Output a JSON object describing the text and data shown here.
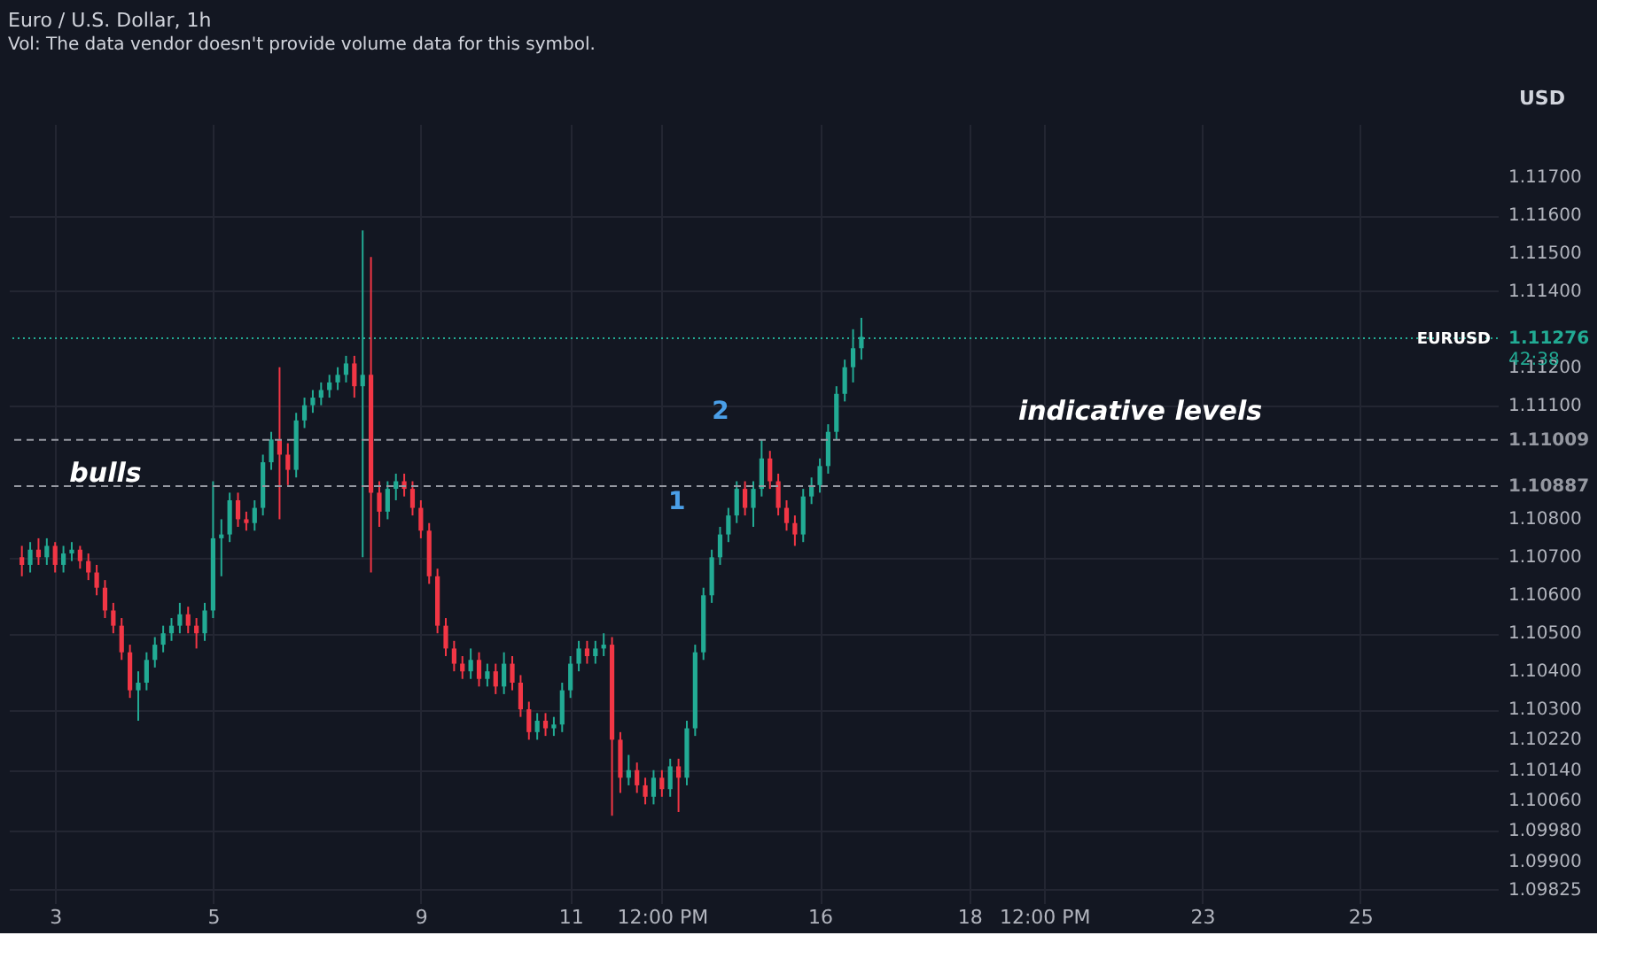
{
  "chart_data": {
    "type": "candlestick",
    "title": "Euro / U.S. Dollar, 1h",
    "subtitle": "Vol: The data vendor doesn't provide volume data for this symbol.",
    "categories": [
      null,
      null,
      null,
      null,
      "3",
      null,
      null,
      null,
      null,
      null,
      null,
      null,
      null,
      null,
      null,
      null,
      null,
      null,
      null,
      null,
      null,
      null,
      null,
      "5",
      null,
      null,
      null,
      null,
      null,
      null,
      null,
      null,
      null,
      null,
      null,
      null,
      null,
      null,
      null,
      null,
      null,
      null,
      null,
      null,
      null,
      null,
      null,
      null,
      "9",
      null,
      null,
      null,
      null,
      null,
      null,
      null,
      null,
      null,
      null,
      null,
      null,
      null,
      null,
      null,
      null,
      null,
      "11",
      null,
      null,
      null,
      null,
      null,
      null,
      null,
      null,
      null,
      null,
      "12:00 PM",
      null,
      null,
      null,
      null,
      null,
      null,
      null,
      null,
      null,
      null,
      null,
      null,
      null,
      null,
      null,
      null,
      null,
      null,
      "16",
      null,
      null,
      null,
      null,
      null,
      null,
      null,
      null,
      null,
      null,
      null,
      null,
      null,
      null,
      null,
      null,
      null,
      "18",
      null,
      null,
      null,
      null,
      null,
      null,
      null,
      null,
      "12:00 PM",
      null,
      null,
      null,
      null,
      null,
      null,
      null,
      null,
      null,
      null,
      null,
      null,
      null,
      null,
      null,
      null,
      null,
      null,
      "23",
      null,
      null,
      null,
      null,
      null,
      null,
      null,
      null,
      null,
      null,
      null,
      null,
      null,
      null,
      null,
      null,
      null,
      null,
      "25",
      null,
      null,
      null,
      null,
      null,
      null,
      null,
      null,
      null,
      null,
      null,
      null,
      null,
      null,
      null
    ],
    "ohlc": [
      [
        1.107,
        1.1073,
        1.1065,
        1.1068
      ],
      [
        1.1068,
        1.1074,
        1.1066,
        1.1072
      ],
      [
        1.1072,
        1.1075,
        1.1068,
        1.107
      ],
      [
        1.107,
        1.1075,
        1.1068,
        1.1073
      ],
      [
        1.1073,
        1.1074,
        1.1066,
        1.1068
      ],
      [
        1.1068,
        1.1073,
        1.1066,
        1.1071
      ],
      [
        1.1071,
        1.1074,
        1.1069,
        1.1072
      ],
      [
        1.1072,
        1.1073,
        1.1067,
        1.1069
      ],
      [
        1.1069,
        1.1071,
        1.1064,
        1.1066
      ],
      [
        1.1066,
        1.1068,
        1.106,
        1.1062
      ],
      [
        1.1062,
        1.1064,
        1.1054,
        1.1056
      ],
      [
        1.1056,
        1.1058,
        1.105,
        1.1052
      ],
      [
        1.1052,
        1.1054,
        1.1043,
        1.1045
      ],
      [
        1.1045,
        1.1047,
        1.1033,
        1.1035
      ],
      [
        1.1035,
        1.104,
        1.1027,
        1.1037
      ],
      [
        1.1037,
        1.1045,
        1.1035,
        1.1043
      ],
      [
        1.1043,
        1.1049,
        1.1041,
        1.1047
      ],
      [
        1.1047,
        1.1052,
        1.1045,
        1.105
      ],
      [
        1.105,
        1.1054,
        1.1048,
        1.1052
      ],
      [
        1.1052,
        1.1058,
        1.105,
        1.1055
      ],
      [
        1.1055,
        1.1057,
        1.105,
        1.1052
      ],
      [
        1.1052,
        1.1054,
        1.1046,
        1.105
      ],
      [
        1.105,
        1.1058,
        1.1048,
        1.1056
      ],
      [
        1.1056,
        1.109,
        1.1054,
        1.1075
      ],
      [
        1.1075,
        1.108,
        1.1065,
        1.1076
      ],
      [
        1.1076,
        1.1087,
        1.1074,
        1.1085
      ],
      [
        1.1085,
        1.1087,
        1.1078,
        1.108
      ],
      [
        1.108,
        1.1082,
        1.1077,
        1.1079
      ],
      [
        1.1079,
        1.1085,
        1.1077,
        1.1083
      ],
      [
        1.1083,
        1.1097,
        1.1081,
        1.1095
      ],
      [
        1.1095,
        1.1103,
        1.1093,
        1.1101
      ],
      [
        1.1101,
        1.112,
        1.108,
        1.1097
      ],
      [
        1.1097,
        1.11,
        1.1089,
        1.1093
      ],
      [
        1.1093,
        1.1108,
        1.1091,
        1.1106
      ],
      [
        1.1106,
        1.1112,
        1.1104,
        1.111
      ],
      [
        1.111,
        1.1114,
        1.1108,
        1.1112
      ],
      [
        1.1112,
        1.1116,
        1.111,
        1.1114
      ],
      [
        1.1114,
        1.1118,
        1.1112,
        1.1116
      ],
      [
        1.1116,
        1.112,
        1.1114,
        1.1118
      ],
      [
        1.1118,
        1.1123,
        1.1116,
        1.1121
      ],
      [
        1.1121,
        1.1123,
        1.1112,
        1.1115
      ],
      [
        1.1115,
        1.1156,
        1.107,
        1.1118
      ],
      [
        1.1118,
        1.1149,
        1.1066,
        1.1087
      ],
      [
        1.1087,
        1.109,
        1.1078,
        1.1082
      ],
      [
        1.1082,
        1.109,
        1.108,
        1.1088
      ],
      [
        1.1088,
        1.1092,
        1.1085,
        1.109
      ],
      [
        1.109,
        1.1092,
        1.1086,
        1.1088
      ],
      [
        1.1088,
        1.109,
        1.1081,
        1.1083
      ],
      [
        1.1083,
        1.1085,
        1.1075,
        1.1077
      ],
      [
        1.1077,
        1.1079,
        1.1063,
        1.1065
      ],
      [
        1.1065,
        1.1067,
        1.105,
        1.1052
      ],
      [
        1.1052,
        1.1054,
        1.1044,
        1.1046
      ],
      [
        1.1046,
        1.1048,
        1.104,
        1.1042
      ],
      [
        1.1042,
        1.1044,
        1.1038,
        1.104
      ],
      [
        1.104,
        1.1046,
        1.1038,
        1.1043
      ],
      [
        1.1043,
        1.1045,
        1.1036,
        1.1038
      ],
      [
        1.1038,
        1.1042,
        1.1036,
        1.104
      ],
      [
        1.104,
        1.1042,
        1.1034,
        1.1036
      ],
      [
        1.1036,
        1.1045,
        1.1034,
        1.1042
      ],
      [
        1.1042,
        1.1044,
        1.1035,
        1.1037
      ],
      [
        1.1037,
        1.1039,
        1.1028,
        1.103
      ],
      [
        1.103,
        1.1032,
        1.1022,
        1.1024
      ],
      [
        1.1024,
        1.1029,
        1.1022,
        1.1027
      ],
      [
        1.1027,
        1.1029,
        1.1023,
        1.1025
      ],
      [
        1.1025,
        1.1028,
        1.1023,
        1.1026
      ],
      [
        1.1026,
        1.1037,
        1.1024,
        1.1035
      ],
      [
        1.1035,
        1.1044,
        1.1033,
        1.1042
      ],
      [
        1.1042,
        1.1048,
        1.104,
        1.1046
      ],
      [
        1.1046,
        1.1048,
        1.1042,
        1.1044
      ],
      [
        1.1044,
        1.1048,
        1.1042,
        1.1046
      ],
      [
        1.1046,
        1.105,
        1.1044,
        1.1047
      ],
      [
        1.1047,
        1.1049,
        1.1002,
        1.1022
      ],
      [
        1.1022,
        1.1024,
        1.1008,
        1.1012
      ],
      [
        1.1012,
        1.1018,
        1.101,
        1.1014
      ],
      [
        1.1014,
        1.1016,
        1.1008,
        1.101
      ],
      [
        1.101,
        1.1012,
        1.1005,
        1.1007
      ],
      [
        1.1007,
        1.1014,
        1.1005,
        1.1012
      ],
      [
        1.1012,
        1.1014,
        1.1007,
        1.1009
      ],
      [
        1.1009,
        1.1017,
        1.1007,
        1.1015
      ],
      [
        1.1015,
        1.1017,
        1.1003,
        1.1012
      ],
      [
        1.1012,
        1.1027,
        1.101,
        1.1025
      ],
      [
        1.1025,
        1.1047,
        1.1023,
        1.1045
      ],
      [
        1.1045,
        1.1062,
        1.1043,
        1.106
      ],
      [
        1.106,
        1.1072,
        1.1058,
        1.107
      ],
      [
        1.107,
        1.1078,
        1.1068,
        1.1076
      ],
      [
        1.1076,
        1.1083,
        1.1074,
        1.1081
      ],
      [
        1.1081,
        1.109,
        1.1079,
        1.1088
      ],
      [
        1.1088,
        1.109,
        1.1081,
        1.1083
      ],
      [
        1.1083,
        1.109,
        1.1078,
        1.1088
      ],
      [
        1.1088,
        1.1101,
        1.1086,
        1.1096
      ],
      [
        1.1096,
        1.1098,
        1.1088,
        1.109
      ],
      [
        1.109,
        1.1092,
        1.1081,
        1.1083
      ],
      [
        1.1083,
        1.1085,
        1.1077,
        1.1079
      ],
      [
        1.1079,
        1.1081,
        1.1073,
        1.1076
      ],
      [
        1.1076,
        1.1088,
        1.1074,
        1.1086
      ],
      [
        1.1086,
        1.1091,
        1.1084,
        1.1089
      ],
      [
        1.1089,
        1.1096,
        1.1087,
        1.1094
      ],
      [
        1.1094,
        1.1105,
        1.1092,
        1.1103
      ],
      [
        1.1103,
        1.1115,
        1.1101,
        1.1113
      ],
      [
        1.1113,
        1.1122,
        1.1111,
        1.112
      ],
      [
        1.112,
        1.113,
        1.1116,
        1.1125
      ],
      [
        1.1125,
        1.1133,
        1.1122,
        1.1128
      ],
      null,
      null,
      null,
      null,
      null,
      null,
      null,
      null,
      null,
      null,
      null,
      null,
      null,
      null,
      null,
      null,
      null,
      null,
      null,
      null,
      null,
      null,
      null,
      null,
      null,
      null,
      null,
      null,
      null,
      null,
      null,
      null,
      null,
      null,
      null,
      null,
      null,
      null,
      null,
      null,
      null,
      null,
      null,
      null,
      null,
      null,
      null,
      null,
      null,
      null,
      null,
      null,
      null,
      null,
      null,
      null,
      null,
      null,
      null,
      null,
      null,
      null,
      null,
      null,
      null,
      null,
      null,
      null,
      null,
      null,
      null,
      null,
      null,
      null,
      null
    ],
    "ylim": [
      1.0979,
      1.1184
    ],
    "yticks": [
      {
        "value": 1.117,
        "label": "1.11700"
      },
      {
        "value": 1.116,
        "label": "1.11600"
      },
      {
        "value": 1.115,
        "label": "1.11500"
      },
      {
        "value": 1.114,
        "label": "1.11400"
      },
      {
        "value": 1.112,
        "label": "1.11200"
      },
      {
        "value": 1.111,
        "label": "1.11100"
      },
      {
        "value": 1.108,
        "label": "1.10800"
      },
      {
        "value": 1.107,
        "label": "1.10700"
      },
      {
        "value": 1.106,
        "label": "1.10600"
      },
      {
        "value": 1.105,
        "label": "1.10500"
      },
      {
        "value": 1.104,
        "label": "1.10400"
      },
      {
        "value": 1.103,
        "label": "1.10300"
      },
      {
        "value": 1.1022,
        "label": "1.10220"
      },
      {
        "value": 1.1014,
        "label": "1.10140"
      },
      {
        "value": 1.1006,
        "label": "1.10060"
      },
      {
        "value": 1.0998,
        "label": "1.09980"
      },
      {
        "value": 1.099,
        "label": "1.09900"
      },
      {
        "value": 1.09825,
        "label": "1.09825"
      }
    ],
    "ref_lines": [
      {
        "axis": "y",
        "value": 1.11009,
        "label": "1.11009",
        "color": "#9598a1",
        "line_style": "dashed"
      },
      {
        "axis": "y",
        "value": 1.10887,
        "label": "1.10887",
        "color": "#9598a1",
        "line_style": "dashed"
      },
      {
        "axis": "y",
        "value": 1.11276,
        "label": "1.11276",
        "color": "#22ab94",
        "line_style": "dotted"
      }
    ],
    "annotations": [
      "USD",
      "EURUSD",
      "42:38",
      "bulls",
      "1",
      "2",
      "indicative levels"
    ],
    "grid": true
  }
}
